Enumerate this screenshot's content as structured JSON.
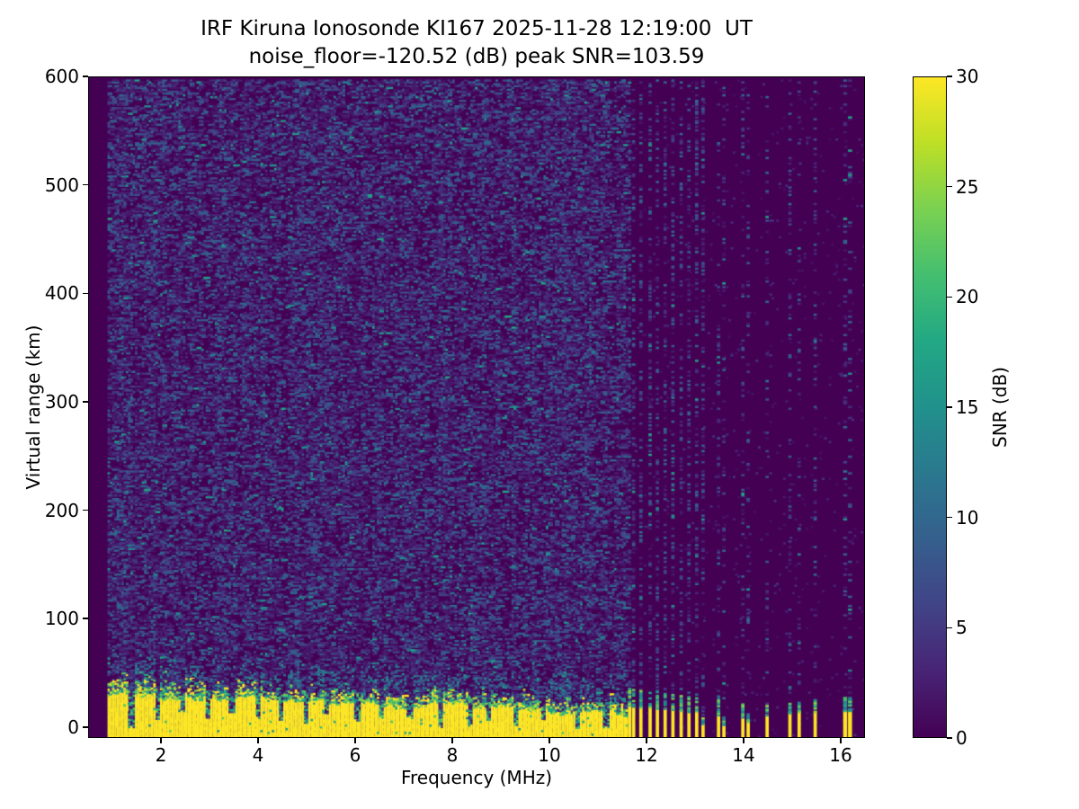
{
  "header": {
    "title_line1": "IRF Kiruna Ionosonde KI167 2025-11-28 12:19:00  UT",
    "title_line2": "noise_floor=-120.52 (dB) peak SNR=103.59",
    "station": "IRF Kiruna Ionosonde",
    "instrument": "KI167",
    "timestamp_ut": "2025-11-28 12:19:00",
    "noise_floor_db": -120.52,
    "peak_snr_db": 103.59
  },
  "chart_data": {
    "type": "heatmap",
    "title": "IRF Kiruna Ionosonde KI167 2025-11-28 12:19:00  UT",
    "subtitle": "noise_floor=-120.52 (dB) peak SNR=103.59",
    "xlabel": "Frequency (MHz)",
    "ylabel": "Virtual range (km)",
    "colorbar_label": "SNR (dB)",
    "xlim": [
      0.5,
      16.5
    ],
    "ylim": [
      -10,
      600
    ],
    "clim": [
      0,
      30
    ],
    "x_ticks": [
      2,
      4,
      6,
      8,
      10,
      12,
      14,
      16
    ],
    "y_ticks": [
      0,
      100,
      200,
      300,
      400,
      500,
      600
    ],
    "colorbar_ticks": [
      0,
      5,
      10,
      15,
      20,
      25,
      30
    ],
    "grid": false,
    "colormap": {
      "name": "viridis",
      "stops": [
        "#440154",
        "#482475",
        "#414487",
        "#355f8d",
        "#2a788e",
        "#21918c",
        "#22a884",
        "#44bf70",
        "#7ad151",
        "#bddf26",
        "#fde725"
      ]
    },
    "heatmap": {
      "seed": 1167,
      "freq_start_mhz": 0.9,
      "freq_step_mhz": 0.047,
      "range_step_km": 1.7,
      "continuous_echo_end_mhz": 11.58,
      "echo_band": {
        "top_at_1mhz_km": 33,
        "slope_km_per_mhz": -1.75,
        "jitter_km": 3,
        "transition_km": 14
      },
      "notches": {
        "start_mhz": 1.3,
        "spacing_mhz": 0.42,
        "spacing_jitter_mhz": 0.22,
        "min_depth": 0.35,
        "max_depth": 1.0
      },
      "background_noise": {
        "density": 0.42,
        "base_t": 0.05,
        "spread_t": 0.3,
        "bright_prob": 0.02,
        "sparse_right_density": 0.02
      },
      "stripes": [
        {
          "f": 11.62,
          "yellow_top": 21,
          "green_top": 37
        },
        {
          "f": 11.7,
          "yellow_top": 20,
          "green_top": 36
        },
        {
          "f": 11.85,
          "yellow_top": 19,
          "green_top": 35
        },
        {
          "f": 12.04,
          "yellow_top": 19,
          "green_top": 34
        },
        {
          "f": 12.19,
          "yellow_top": 18,
          "green_top": 34
        },
        {
          "f": 12.35,
          "yellow_top": 18,
          "green_top": 33
        },
        {
          "f": 12.51,
          "yellow_top": 17,
          "green_top": 32
        },
        {
          "f": 12.68,
          "yellow_top": 16,
          "green_top": 31
        },
        {
          "f": 12.84,
          "yellow_top": 15,
          "green_top": 30
        },
        {
          "f": 13.0,
          "yellow_top": 14,
          "green_top": 28
        },
        {
          "f": 13.13,
          "yellow_top": 4,
          "green_top": 12
        },
        {
          "f": 13.45,
          "yellow_top": 12,
          "green_top": 26
        },
        {
          "f": 13.56,
          "yellow_top": 3,
          "green_top": 10
        },
        {
          "f": 13.95,
          "yellow_top": 10,
          "green_top": 22
        },
        {
          "f": 14.06,
          "yellow_top": 6,
          "green_top": 14
        },
        {
          "f": 14.45,
          "yellow_top": 12,
          "green_top": 22
        },
        {
          "f": 14.92,
          "yellow_top": 14,
          "green_top": 24
        },
        {
          "f": 15.11,
          "yellow_top": 15,
          "green_top": 26
        },
        {
          "f": 15.44,
          "yellow_top": 15,
          "green_top": 26
        },
        {
          "f": 16.05,
          "yellow_top": 16,
          "green_top": 28,
          "w": 1.6
        },
        {
          "f": 16.15,
          "yellow_top": 16,
          "green_top": 28,
          "w": 1.6
        }
      ]
    }
  }
}
